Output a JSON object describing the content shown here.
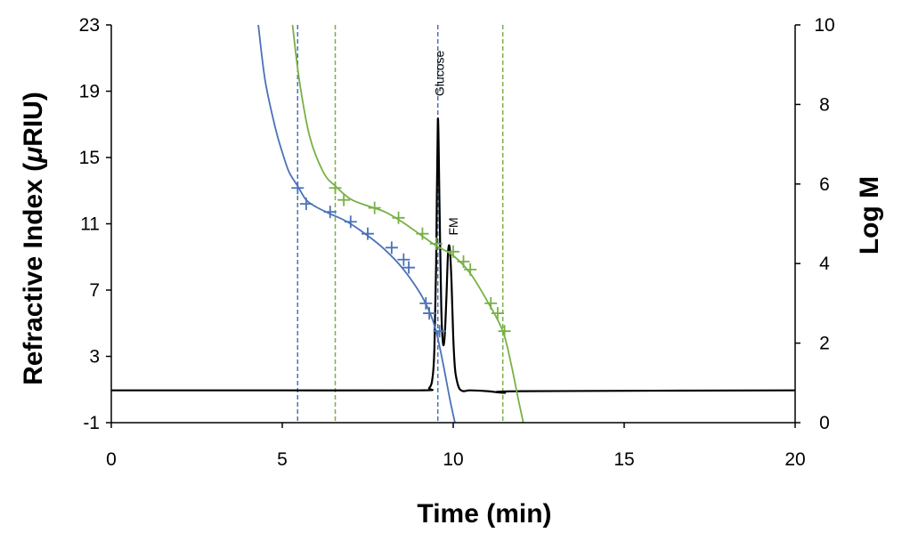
{
  "chart_data": {
    "type": "line",
    "xlabel": "Time (min)",
    "ylabel_left": "Refractive Index (μRIU)",
    "ylabel_left_parts": [
      "Refractive Index (",
      "μ",
      "RIU)"
    ],
    "ylabel_right": "Log M",
    "xlim": [
      0,
      20
    ],
    "ylim_left": [
      -1,
      23
    ],
    "ylim_right": [
      0,
      10
    ],
    "x_ticks": [
      "0",
      "5",
      "10",
      "15",
      "20"
    ],
    "y_left_ticks": [
      "-1",
      "3",
      "7",
      "11",
      "15",
      "19",
      "23"
    ],
    "y_right_ticks": [
      "0",
      "2",
      "4",
      "6",
      "8",
      "10"
    ],
    "grid": false,
    "annotations": [
      {
        "text": "Glucose",
        "x": 9.6,
        "y": 18.7
      },
      {
        "text": "FM",
        "x": 10.0,
        "y": 10.3
      }
    ],
    "vertical_lines": [
      {
        "x": 5.45,
        "color": "#4a72b8"
      },
      {
        "x": 6.55,
        "color": "#78b046"
      },
      {
        "x": 9.55,
        "color": "#4a72b8"
      },
      {
        "x": 11.45,
        "color": "#78b046"
      }
    ],
    "series": [
      {
        "axis": "left",
        "color": "#000000",
        "x": [
          0,
          5,
          9.0,
          9.3,
          9.4,
          9.45,
          9.5,
          9.55,
          9.6,
          9.65,
          9.7,
          9.75,
          9.8,
          9.85,
          9.9,
          9.95,
          10.0,
          10.05,
          10.1,
          10.15,
          10.2,
          10.3,
          10.5,
          11.0,
          11.5,
          12.0,
          20
        ],
        "y": [
          0.95,
          0.95,
          0.95,
          1.1,
          1.8,
          3.5,
          8.5,
          17.3,
          12.0,
          6.0,
          3.8,
          4.2,
          6.5,
          9.3,
          9.5,
          7.5,
          4.2,
          2.3,
          1.6,
          1.2,
          1.0,
          0.9,
          0.95,
          0.9,
          0.8,
          0.9,
          0.95
        ]
      },
      {
        "axis": "right",
        "color": "#4a72b8",
        "x": [
          4.3,
          4.5,
          4.8,
          5.0,
          5.2,
          5.45,
          5.7,
          6.0,
          6.4,
          6.9,
          7.5,
          8.0,
          8.5,
          9.0,
          9.3,
          9.5,
          9.7,
          9.9,
          10.05
        ],
        "y": [
          10.0,
          8.6,
          7.4,
          6.8,
          6.3,
          5.95,
          5.6,
          5.42,
          5.25,
          5.05,
          4.7,
          4.35,
          3.9,
          3.3,
          2.8,
          2.3,
          1.5,
          0.6,
          0.0
        ]
      },
      {
        "axis": "right",
        "color": "#78b046",
        "x": [
          5.3,
          5.5,
          5.8,
          6.2,
          6.55,
          7.0,
          7.5,
          8.0,
          8.5,
          9.0,
          9.5,
          10.0,
          10.5,
          11.0,
          11.45,
          11.7,
          11.9,
          12.05
        ],
        "y": [
          10.0,
          8.6,
          7.2,
          6.3,
          5.95,
          5.62,
          5.45,
          5.3,
          5.05,
          4.75,
          4.45,
          4.2,
          3.75,
          3.05,
          2.3,
          1.45,
          0.6,
          0.0
        ]
      }
    ],
    "markers": [
      {
        "axis": "right",
        "color": "#4a72b8",
        "x": [
          5.45,
          5.7,
          6.4,
          7.0,
          7.5,
          8.2,
          8.55,
          8.7,
          9.2,
          9.3,
          9.6
        ],
        "y": [
          5.9,
          5.5,
          5.3,
          5.05,
          4.75,
          4.4,
          4.1,
          3.9,
          3.0,
          2.75,
          2.3
        ]
      },
      {
        "axis": "right",
        "color": "#78b046",
        "x": [
          6.55,
          6.8,
          7.7,
          8.4,
          9.1,
          9.5,
          10.0,
          10.3,
          10.5,
          11.1,
          11.3,
          11.5
        ],
        "y": [
          5.9,
          5.6,
          5.4,
          5.15,
          4.75,
          4.5,
          4.3,
          4.05,
          3.85,
          3.0,
          2.75,
          2.3
        ]
      }
    ]
  }
}
